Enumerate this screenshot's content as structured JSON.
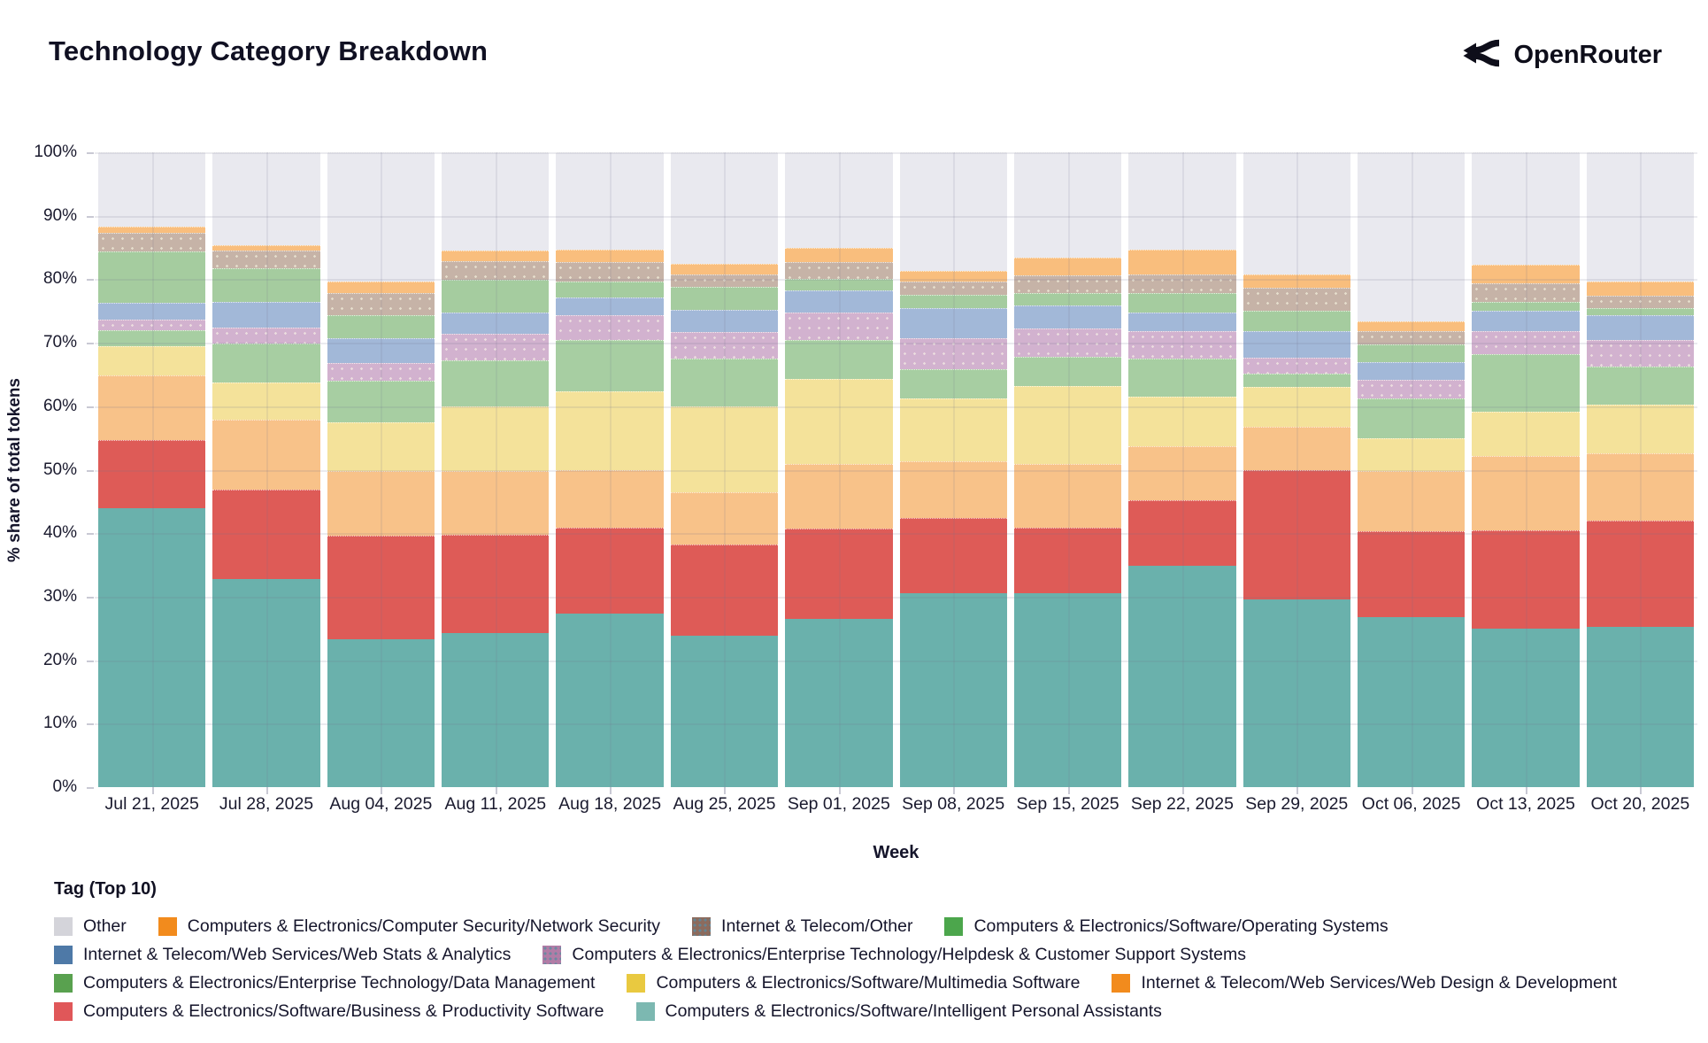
{
  "header": {
    "title": "Technology Category Breakdown",
    "brand": "OpenRouter"
  },
  "chart_data": {
    "type": "bar",
    "subtype": "stacked-percent",
    "title": "Technology Category Breakdown",
    "xlabel": "Week",
    "ylabel": "% share of total tokens",
    "ylim": [
      0,
      100
    ],
    "ytick_labels": [
      "0%",
      "10%",
      "20%",
      "30%",
      "40%",
      "50%",
      "60%",
      "70%",
      "80%",
      "90%",
      "100%"
    ],
    "grid": "on",
    "legend_title": "Tag (Top 10)",
    "legend_position": "bottom",
    "categories": [
      "Jul 21, 2025",
      "Jul 28, 2025",
      "Aug 04, 2025",
      "Aug 11, 2025",
      "Aug 18, 2025",
      "Aug 25, 2025",
      "Sep 01, 2025",
      "Sep 08, 2025",
      "Sep 15, 2025",
      "Sep 22, 2025",
      "Sep 29, 2025",
      "Oct 06, 2025",
      "Oct 13, 2025",
      "Oct 20, 2025"
    ],
    "series": [
      {
        "id": "ipa",
        "name": "Computers & Electronics/Software/Intelligent Personal Assistants",
        "bar_color": "#6ab1ac",
        "legend_color": "#7cb8b1",
        "textured": false,
        "values": [
          44.0,
          32.8,
          23.3,
          24.3,
          27.3,
          23.8,
          26.5,
          30.6,
          30.6,
          34.8,
          29.6,
          26.8,
          24.9,
          25.3
        ]
      },
      {
        "id": "bizprod",
        "name": "Computers & Electronics/Software/Business & Productivity Software",
        "bar_color": "#de5b57",
        "legend_color": "#e05759",
        "textured": false,
        "values": [
          10.7,
          14.1,
          16.3,
          15.5,
          13.5,
          14.4,
          14.2,
          11.8,
          10.2,
          10.4,
          20.3,
          13.5,
          15.5,
          16.7
        ]
      },
      {
        "id": "webdesign",
        "name": "Internet & Telecom/Web Services/Web Design & Development",
        "bar_color": "#f8c289",
        "legend_color": "#f28b1d",
        "textured": false,
        "values": [
          10.1,
          11.0,
          10.2,
          10.0,
          9.2,
          8.3,
          10.2,
          9.0,
          10.1,
          8.5,
          6.9,
          9.5,
          11.7,
          10.6
        ]
      },
      {
        "id": "multimedia",
        "name": "Computers & Electronics/Software/Multimedia Software",
        "bar_color": "#f4e29a",
        "legend_color": "#e9c940",
        "textured": false,
        "values": [
          4.7,
          5.9,
          7.7,
          10.2,
          12.4,
          13.5,
          13.4,
          9.9,
          12.3,
          7.8,
          6.3,
          5.2,
          7.1,
          7.6
        ]
      },
      {
        "id": "dm",
        "name": "Computers & Electronics/Enterprise Technology/Data Management",
        "bar_color": "#a7cea2",
        "legend_color": "#59a14f",
        "textured": false,
        "values": [
          2.5,
          6.1,
          6.5,
          7.2,
          8.0,
          7.5,
          6.2,
          4.6,
          4.6,
          6.0,
          2.1,
          6.3,
          9.0,
          6.1
        ]
      },
      {
        "id": "helpdesk",
        "name": "Computers & Electronics/Enterprise Technology/Helpdesk & Customer Support Systems",
        "bar_color": "#d2b2cf",
        "legend_color": "#b27ca6",
        "textured": true,
        "values": [
          1.6,
          2.5,
          2.8,
          4.2,
          3.9,
          4.2,
          4.2,
          4.8,
          4.4,
          4.4,
          2.5,
          2.8,
          3.6,
          4.1
        ]
      },
      {
        "id": "webstats",
        "name": "Internet & Telecom/Web Services/Web Stats & Analytics",
        "bar_color": "#a2b8d8",
        "legend_color": "#4e79a7",
        "textured": false,
        "values": [
          2.7,
          4.1,
          3.9,
          3.3,
          2.8,
          3.5,
          3.5,
          4.8,
          3.7,
          2.8,
          4.2,
          2.8,
          3.3,
          3.9
        ]
      },
      {
        "id": "os",
        "name": "Computers & Electronics/Software/Operating Systems",
        "bar_color": "#a5cc9f",
        "legend_color": "#4ca64c",
        "textured": false,
        "values": [
          8.1,
          5.3,
          3.7,
          5.2,
          2.6,
          3.6,
          1.9,
          2.0,
          2.0,
          3.2,
          3.2,
          2.8,
          1.4,
          1.2
        ]
      },
      {
        "id": "it_other",
        "name": "Internet & Telecom/Other",
        "bar_color": "#c6b3a7",
        "legend_color": "#8c6b5d",
        "textured": true,
        "values": [
          2.9,
          2.7,
          3.5,
          2.9,
          3.0,
          2.0,
          2.6,
          2.2,
          2.7,
          2.8,
          3.6,
          2.1,
          2.9,
          1.9
        ]
      },
      {
        "id": "netsec",
        "name": "Computers & Electronics/Computer Security/Network Security",
        "bar_color": "#f9be7d",
        "legend_color": "#f28b1d",
        "textured": false,
        "values": [
          1.0,
          0.8,
          1.8,
          1.7,
          2.0,
          1.6,
          2.2,
          1.6,
          2.8,
          3.9,
          2.0,
          1.6,
          2.9,
          2.3
        ]
      },
      {
        "id": "other",
        "name": "Other",
        "bar_color": "#e9e9ef",
        "legend_color": "#d4d4da",
        "textured": false,
        "values": [
          11.7,
          14.7,
          20.3,
          15.5,
          15.3,
          17.6,
          15.1,
          18.7,
          16.6,
          15.4,
          19.3,
          26.6,
          17.7,
          20.3
        ]
      }
    ],
    "legend_rows": [
      [
        "other",
        "netsec",
        "it_other",
        "os"
      ],
      [
        "webstats",
        "helpdesk"
      ],
      [
        "dm",
        "multimedia",
        "webdesign"
      ],
      [
        "bizprod",
        "ipa"
      ]
    ]
  }
}
